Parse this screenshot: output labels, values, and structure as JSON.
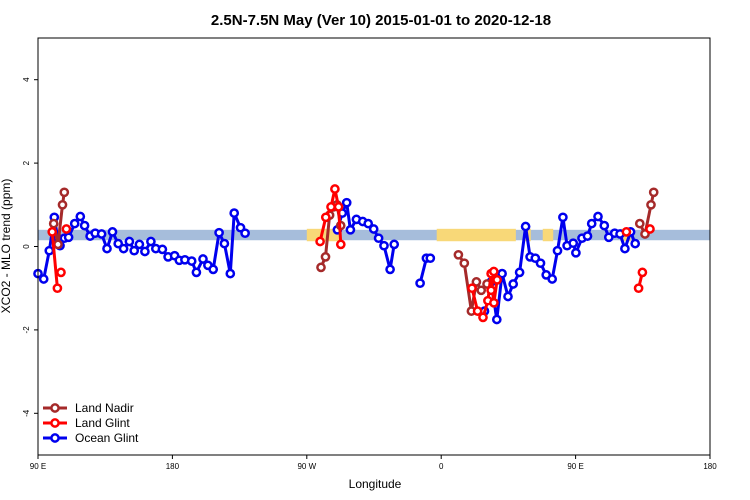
{
  "chart_data": {
    "type": "line",
    "title": "2.5N-7.5N May (Ver 10)   2015-01-01 to 2020-12-18",
    "xlabel": "Longitude",
    "ylabel": "XCO2 - MLO trend (ppm)",
    "x_ticks": [
      {
        "value": 90,
        "label": "90 E"
      },
      {
        "value": 180,
        "label": "180"
      },
      {
        "value": 270,
        "label": "90 W"
      },
      {
        "value": 360,
        "label": "0"
      },
      {
        "value": 450,
        "label": "90 E"
      },
      {
        "value": 540,
        "label": "180"
      }
    ],
    "y_ticks": [
      -4,
      -2,
      0,
      2,
      4
    ],
    "xlim": [
      90,
      540
    ],
    "ylim": [
      -5,
      5
    ],
    "legend_position": "bottom-left",
    "colors": {
      "land_nadir": "#a52a2a",
      "land_glint": "#ff0000",
      "ocean_glint": "#0000ee",
      "ocean_band": "#a6bddb",
      "land_band": "#f8d878"
    },
    "background_band": {
      "y_range": [
        0.15,
        0.4
      ],
      "ocean_color": "#a6bddb",
      "land_color": "#f8d878",
      "land_longitudes": [
        [
          270,
          293
        ],
        [
          357,
          410
        ],
        [
          416,
          420
        ],
        [
          428,
          435
        ],
        [
          480,
          487
        ]
      ]
    },
    "series": [
      {
        "name": "Land Nadir",
        "color": "#a52a2a",
        "segments": [
          [
            [
              100.5,
              0.55
            ],
            [
              103.4,
              0.05
            ],
            [
              106.4,
              1.0
            ],
            [
              107.6,
              1.3
            ]
          ],
          [
            [
              279.5,
              -0.5
            ],
            [
              282.5,
              -0.25
            ],
            [
              285.3,
              0.75
            ],
            [
              287.8,
              0.95
            ],
            [
              290.2,
              1.0
            ],
            [
              292.7,
              0.5
            ]
          ],
          [
            [
              371.5,
              -0.2
            ],
            [
              375.5,
              -0.4
            ],
            [
              380.2,
              -1.55
            ],
            [
              383.6,
              -0.85
            ],
            [
              386.8,
              -1.05
            ],
            [
              390.7,
              -0.9
            ]
          ],
          [
            [
              493,
              0.55
            ],
            [
              496.5,
              0.3
            ],
            [
              500.5,
              1.0
            ],
            [
              502.3,
              1.3
            ]
          ]
        ]
      },
      {
        "name": "Land Glint",
        "color": "#ff0000",
        "segments": [
          [
            [
              99.5,
              0.35
            ],
            [
              103,
              -1.0
            ]
          ],
          [
            [
              105.4,
              -0.62
            ]
          ],
          [
            [
              109,
              0.42
            ]
          ],
          [
            [
              278.9,
              0.12
            ],
            [
              282.7,
              0.7
            ],
            [
              286.2,
              0.95
            ],
            [
              288.8,
              1.38
            ],
            [
              291.3,
              0.95
            ],
            [
              292.8,
              0.05
            ]
          ],
          [
            [
              380.6,
              -1.0
            ],
            [
              384.4,
              -1.55
            ],
            [
              388,
              -1.7
            ],
            [
              391.3,
              -1.3
            ],
            [
              393.4,
              -0.65
            ],
            [
              395.3,
              -1.35
            ],
            [
              397.4,
              -0.8
            ]
          ],
          [
            [
              393.4,
              -1.05
            ],
            [
              395.2,
              -0.6
            ]
          ],
          [
            [
              484,
              0.35
            ]
          ],
          [
            [
              492.2,
              -1.0
            ],
            [
              494.7,
              -0.62
            ]
          ],
          [
            [
              499.8,
              0.42
            ]
          ]
        ]
      },
      {
        "name": "Ocean Glint",
        "color": "#0000ee",
        "segments": [
          [
            [
              90,
              -0.65
            ],
            [
              93.8,
              -0.78
            ],
            [
              97.6,
              -0.1
            ],
            [
              100.9,
              0.7
            ],
            [
              103.2,
              0.2
            ],
            [
              104.7,
              0.02
            ],
            [
              107.7,
              0.2
            ],
            [
              110.5,
              0.22
            ],
            [
              114.6,
              0.55
            ],
            [
              118.3,
              0.72
            ],
            [
              121.2,
              0.5
            ],
            [
              124.9,
              0.25
            ],
            [
              128.3,
              0.32
            ],
            [
              132.6,
              0.3
            ],
            [
              136.2,
              -0.05
            ],
            [
              139.9,
              0.35
            ],
            [
              143.7,
              0.07
            ],
            [
              147.3,
              -0.05
            ],
            [
              151.2,
              0.12
            ],
            [
              154.4,
              -0.1
            ],
            [
              157.9,
              0.05
            ],
            [
              161.6,
              -0.12
            ],
            [
              165.6,
              0.12
            ],
            [
              168.9,
              -0.05
            ],
            [
              173.3,
              -0.07
            ],
            [
              177.1,
              -0.25
            ],
            [
              181.5,
              -0.22
            ],
            [
              184.6,
              -0.33
            ],
            [
              188.4,
              -0.32
            ],
            [
              192.9,
              -0.35
            ],
            [
              196.1,
              -0.62
            ],
            [
              200.5,
              -0.3
            ],
            [
              203.8,
              -0.45
            ],
            [
              207.3,
              -0.55
            ],
            [
              211.3,
              0.33
            ],
            [
              214.8,
              0.07
            ],
            [
              218.8,
              -0.65
            ],
            [
              221.4,
              0.8
            ],
            [
              225.6,
              0.45
            ],
            [
              228.7,
              0.32
            ]
          ],
          [
            [
              290.5,
              0.4
            ],
            [
              293.8,
              0.8
            ],
            [
              296.7,
              1.05
            ],
            [
              299.2,
              0.4
            ],
            [
              303.2,
              0.65
            ],
            [
              307.4,
              0.6
            ],
            [
              311.1,
              0.55
            ],
            [
              314.8,
              0.42
            ],
            [
              318.1,
              0.2
            ],
            [
              321.7,
              0.02
            ],
            [
              325.8,
              -0.55
            ],
            [
              328.5,
              0.05
            ]
          ],
          [
            [
              345.9,
              -0.88
            ],
            [
              350.1,
              -0.28
            ],
            [
              352.7,
              -0.28
            ]
          ],
          [
            [
              389,
              -1.55
            ]
          ],
          [
            [
              393.4,
              -0.85
            ],
            [
              397.2,
              -1.75
            ],
            [
              400.8,
              -0.65
            ],
            [
              404.7,
              -1.2
            ],
            [
              408.2,
              -0.9
            ],
            [
              412.5,
              -0.62
            ],
            [
              416.5,
              0.48
            ],
            [
              419.5,
              -0.25
            ],
            [
              423,
              -0.28
            ],
            [
              426.5,
              -0.4
            ],
            [
              430.3,
              -0.68
            ],
            [
              434.3,
              -0.78
            ],
            [
              437.9,
              -0.1
            ],
            [
              441.5,
              0.7
            ],
            [
              444.3,
              0.02
            ],
            [
              448.4,
              0.08
            ],
            [
              450.2,
              -0.15
            ],
            [
              454.3,
              0.2
            ],
            [
              458,
              0.25
            ],
            [
              460.8,
              0.55
            ],
            [
              465,
              0.72
            ],
            [
              469.2,
              0.5
            ],
            [
              472.2,
              0.22
            ],
            [
              476.2,
              0.32
            ],
            [
              479.7,
              0.3
            ],
            [
              483,
              -0.05
            ],
            [
              486.8,
              0.35
            ],
            [
              489.9,
              0.07
            ]
          ]
        ]
      }
    ]
  }
}
